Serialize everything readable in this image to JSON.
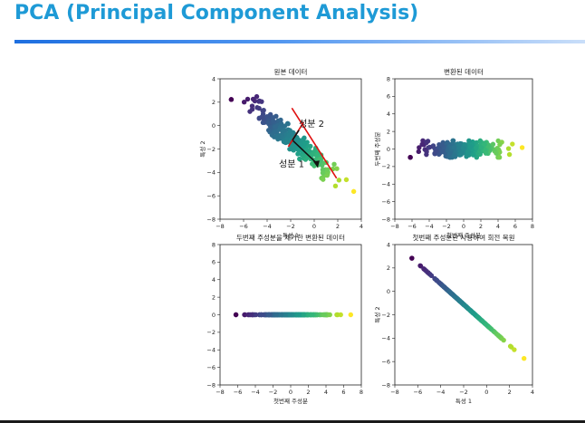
{
  "slide": {
    "title": "PCA (Principal Component Analysis)",
    "accent_color": "#1e9ad6",
    "rule_color": "#2f7fe6"
  },
  "chart_data": [
    {
      "type": "scatter",
      "title": "원본 데이터",
      "xlabel": "특성 1",
      "ylabel": "특성 2",
      "xlim": [
        -8,
        4
      ],
      "ylim": [
        -8,
        4
      ],
      "xticks": [
        -8,
        -6,
        -4,
        -2,
        0,
        2,
        4
      ],
      "yticks": [
        -8,
        -6,
        -4,
        -2,
        0,
        2,
        4
      ],
      "colormap": "viridis",
      "points_shape": "elongated cloud along the line from (-6.6, 3.0) to (3.0, -5.5)",
      "annotations": [
        {
          "text": "성분 1",
          "arrow_from": [
            -1.9,
            1.5
          ],
          "arrow_to": [
            0.3,
            -3.3
          ],
          "color": "#e01010"
        },
        {
          "text": "성분 2",
          "arrow_from": [
            -1.0,
            -0.8
          ],
          "arrow_to": [
            -1.0,
            0.0
          ],
          "color": "#e01010"
        }
      ]
    },
    {
      "type": "scatter",
      "title": "변환된 데이터",
      "xlabel": "첫번째 주성분",
      "ylabel": "두번째 주성분",
      "xlim": [
        -8,
        8
      ],
      "ylim": [
        -8,
        8
      ],
      "xticks": [
        -8,
        -6,
        -4,
        -2,
        0,
        2,
        4,
        6,
        8
      ],
      "yticks": [
        -8,
        -6,
        -4,
        -2,
        0,
        2,
        4,
        6,
        8
      ],
      "colormap": "viridis",
      "points_shape": "horizontal band from x=-6.2 to x=6.8, y within ±1"
    },
    {
      "type": "scatter",
      "title": "두번째 주성분을 제거한 변환된 데이터",
      "xlabel": "첫번째 주성분",
      "ylabel": "",
      "xlim": [
        -8,
        8
      ],
      "ylim": [
        -8,
        8
      ],
      "xticks": [
        -8,
        -6,
        -4,
        -2,
        0,
        2,
        4,
        6,
        8
      ],
      "yticks": [
        -8,
        -6,
        -4,
        -2,
        0,
        2,
        4,
        6,
        8
      ],
      "colormap": "viridis",
      "points_shape": "points on y=0 from x=-6.2 to x=6.8"
    },
    {
      "type": "scatter",
      "title": "첫번째 주성분만 사용하여 회전 복원",
      "xlabel": "특성 1",
      "ylabel": "특성 2",
      "xlim": [
        -8,
        4
      ],
      "ylim": [
        -8,
        4
      ],
      "xticks": [
        -8,
        -6,
        -4,
        -2,
        0,
        2,
        4
      ],
      "yticks": [
        -8,
        -6,
        -4,
        -2,
        0,
        2,
        4
      ],
      "colormap": "viridis",
      "points_shape": "points on the line from (-6.7, 3.0) to (3.0, -5.5)"
    }
  ]
}
